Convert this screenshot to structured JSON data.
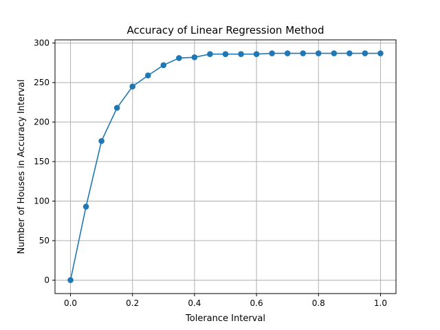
{
  "chart_data": {
    "type": "line",
    "title": "Accuracy of Linear Regression Method",
    "xlabel": "Tolerance Interval",
    "ylabel": "Number of Houses in Accuracy Interval",
    "xlim": [
      -0.05,
      1.05
    ],
    "ylim": [
      -17,
      304
    ],
    "xticks": [
      0.0,
      0.2,
      0.4,
      0.6,
      0.8,
      1.0
    ],
    "xtick_labels": [
      "0.0",
      "0.2",
      "0.4",
      "0.6",
      "0.8",
      "1.0"
    ],
    "yticks": [
      0,
      50,
      100,
      150,
      200,
      250,
      300
    ],
    "ytick_labels": [
      "0",
      "50",
      "100",
      "150",
      "200",
      "250",
      "300"
    ],
    "grid": true,
    "color": "#1f77b4",
    "marker": "circle",
    "series": [
      {
        "x": [
          0.0,
          0.05,
          0.1,
          0.15,
          0.2,
          0.25,
          0.3,
          0.35,
          0.4,
          0.45,
          0.5,
          0.55,
          0.6,
          0.65,
          0.7,
          0.75,
          0.8,
          0.85,
          0.9,
          0.95,
          1.0
        ],
        "y": [
          0,
          93,
          176,
          218,
          245,
          259,
          272,
          281,
          282,
          286,
          286,
          286,
          286,
          287,
          287,
          287,
          287,
          287,
          287,
          287,
          287
        ]
      }
    ]
  }
}
